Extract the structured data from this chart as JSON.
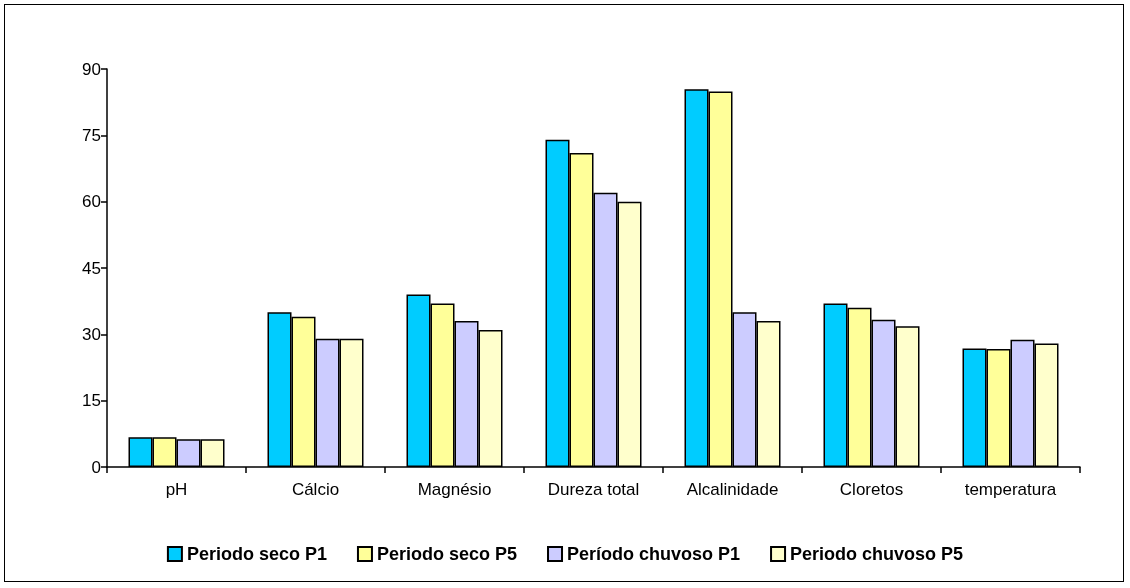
{
  "chart_data": {
    "type": "bar",
    "categories": [
      "pH",
      "Cálcio",
      "Magnésio",
      "Dureza total",
      "Alcalinidade",
      "Cloretos",
      "temperatura"
    ],
    "series": [
      {
        "name": "Periodo seco P1",
        "color": "#00ccff",
        "values": [
          6.7,
          35,
          39,
          74,
          85.4,
          37,
          26.8
        ]
      },
      {
        "name": "Periodo seco P5",
        "color": "#ffff99",
        "values": [
          6.7,
          34,
          37,
          71,
          84.9,
          36,
          26.7
        ]
      },
      {
        "name": "Período chuvoso P1",
        "color": "#ccccff",
        "values": [
          6.3,
          29,
          33,
          62,
          35,
          33.3,
          28.8
        ]
      },
      {
        "name": "Periodo chuvoso P5",
        "color": "#ffffcc",
        "values": [
          6.3,
          29,
          31,
          60,
          33,
          31.8,
          27.9
        ]
      }
    ],
    "ylim": [
      0,
      90
    ],
    "yticks": [
      0,
      15,
      30,
      45,
      60,
      75,
      90
    ],
    "grid": false,
    "legend": "bottom"
  }
}
